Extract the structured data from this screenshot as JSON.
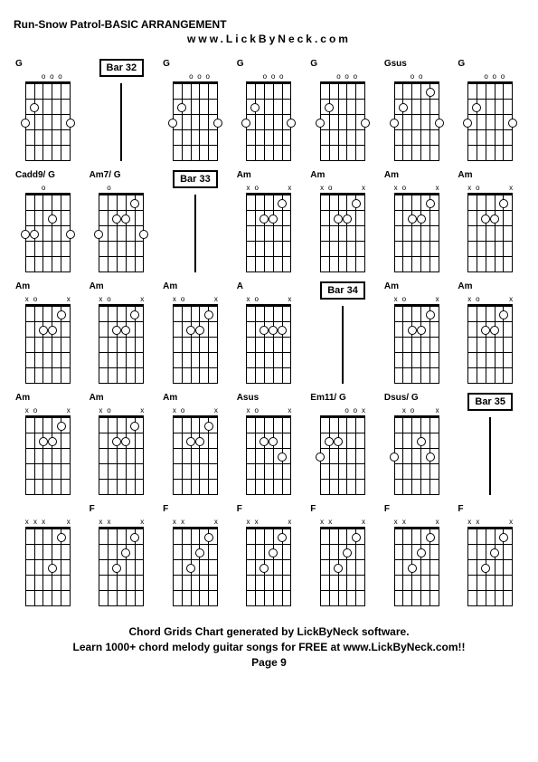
{
  "title": "Run-Snow Patrol-BASIC ARRANGEMENT",
  "subtitle": "www.LickByNeck.com",
  "footer_line1": "Chord Grids Chart generated by LickByNeck software.",
  "footer_line2": "Learn 1000+ chord melody guitar songs for FREE at www.LickByNeck.com!!",
  "footer_line3": "Page 9",
  "colors": {
    "background": "#ffffff",
    "text": "#000000",
    "lines": "#000000"
  },
  "grid_config": {
    "rows": 5,
    "cols": 7,
    "fret_count": 5,
    "string_count": 6
  },
  "cells": [
    {
      "type": "chord",
      "label": "G",
      "markers": [
        "",
        "",
        "o",
        "o",
        "o",
        ""
      ],
      "dots": [
        {
          "s": 0,
          "f": 3
        },
        {
          "s": 1,
          "f": 2
        },
        {
          "s": 5,
          "f": 3
        }
      ]
    },
    {
      "type": "bar",
      "label": "Bar 32"
    },
    {
      "type": "chord",
      "label": "G",
      "markers": [
        "",
        "",
        "o",
        "o",
        "o",
        ""
      ],
      "dots": [
        {
          "s": 0,
          "f": 3
        },
        {
          "s": 1,
          "f": 2
        },
        {
          "s": 5,
          "f": 3
        }
      ]
    },
    {
      "type": "chord",
      "label": "G",
      "markers": [
        "",
        "",
        "o",
        "o",
        "o",
        ""
      ],
      "dots": [
        {
          "s": 0,
          "f": 3
        },
        {
          "s": 1,
          "f": 2
        },
        {
          "s": 5,
          "f": 3
        }
      ]
    },
    {
      "type": "chord",
      "label": "G",
      "markers": [
        "",
        "",
        "o",
        "o",
        "o",
        ""
      ],
      "dots": [
        {
          "s": 0,
          "f": 3
        },
        {
          "s": 1,
          "f": 2
        },
        {
          "s": 5,
          "f": 3
        }
      ]
    },
    {
      "type": "chord",
      "label": "Gsus",
      "markers": [
        "",
        "",
        "o",
        "o",
        "",
        ""
      ],
      "dots": [
        {
          "s": 0,
          "f": 3
        },
        {
          "s": 1,
          "f": 2
        },
        {
          "s": 4,
          "f": 1
        },
        {
          "s": 5,
          "f": 3
        }
      ]
    },
    {
      "type": "chord",
      "label": "G",
      "markers": [
        "",
        "",
        "o",
        "o",
        "o",
        ""
      ],
      "dots": [
        {
          "s": 0,
          "f": 3
        },
        {
          "s": 1,
          "f": 2
        },
        {
          "s": 5,
          "f": 3
        }
      ]
    },
    {
      "type": "chord",
      "label": "Cadd9/ G",
      "markers": [
        "",
        "",
        "o",
        "",
        "",
        ""
      ],
      "dots": [
        {
          "s": 0,
          "f": 3
        },
        {
          "s": 1,
          "f": 3
        },
        {
          "s": 3,
          "f": 2
        },
        {
          "s": 5,
          "f": 3
        }
      ]
    },
    {
      "type": "chord",
      "label": "Am7/ G",
      "markers": [
        "",
        "o",
        "",
        "",
        "",
        ""
      ],
      "dots": [
        {
          "s": 0,
          "f": 3
        },
        {
          "s": 2,
          "f": 2
        },
        {
          "s": 3,
          "f": 2
        },
        {
          "s": 4,
          "f": 1
        },
        {
          "s": 5,
          "f": 3
        }
      ]
    },
    {
      "type": "bar",
      "label": "Bar 33"
    },
    {
      "type": "chord",
      "label": "Am",
      "markers": [
        "x",
        "o",
        "",
        "",
        "",
        "x"
      ],
      "dots": [
        {
          "s": 2,
          "f": 2
        },
        {
          "s": 3,
          "f": 2
        },
        {
          "s": 4,
          "f": 1
        }
      ]
    },
    {
      "type": "chord",
      "label": "Am",
      "markers": [
        "x",
        "o",
        "",
        "",
        "",
        "x"
      ],
      "dots": [
        {
          "s": 2,
          "f": 2
        },
        {
          "s": 3,
          "f": 2
        },
        {
          "s": 4,
          "f": 1
        }
      ]
    },
    {
      "type": "chord",
      "label": "Am",
      "markers": [
        "x",
        "o",
        "",
        "",
        "",
        "x"
      ],
      "dots": [
        {
          "s": 2,
          "f": 2
        },
        {
          "s": 3,
          "f": 2
        },
        {
          "s": 4,
          "f": 1
        }
      ]
    },
    {
      "type": "chord",
      "label": "Am",
      "markers": [
        "x",
        "o",
        "",
        "",
        "",
        "x"
      ],
      "dots": [
        {
          "s": 2,
          "f": 2
        },
        {
          "s": 3,
          "f": 2
        },
        {
          "s": 4,
          "f": 1
        }
      ]
    },
    {
      "type": "chord",
      "label": "Am",
      "markers": [
        "x",
        "o",
        "",
        "",
        "",
        "x"
      ],
      "dots": [
        {
          "s": 2,
          "f": 2
        },
        {
          "s": 3,
          "f": 2
        },
        {
          "s": 4,
          "f": 1
        }
      ]
    },
    {
      "type": "chord",
      "label": "Am",
      "markers": [
        "x",
        "o",
        "",
        "",
        "",
        "x"
      ],
      "dots": [
        {
          "s": 2,
          "f": 2
        },
        {
          "s": 3,
          "f": 2
        },
        {
          "s": 4,
          "f": 1
        }
      ]
    },
    {
      "type": "chord",
      "label": "Am",
      "markers": [
        "x",
        "o",
        "",
        "",
        "",
        "x"
      ],
      "dots": [
        {
          "s": 2,
          "f": 2
        },
        {
          "s": 3,
          "f": 2
        },
        {
          "s": 4,
          "f": 1
        }
      ]
    },
    {
      "type": "chord",
      "label": "A",
      "markers": [
        "x",
        "o",
        "",
        "",
        "",
        "x"
      ],
      "dots": [
        {
          "s": 2,
          "f": 2
        },
        {
          "s": 3,
          "f": 2
        },
        {
          "s": 4,
          "f": 2
        }
      ]
    },
    {
      "type": "bar",
      "label": "Bar 34"
    },
    {
      "type": "chord",
      "label": "Am",
      "markers": [
        "x",
        "o",
        "",
        "",
        "",
        "x"
      ],
      "dots": [
        {
          "s": 2,
          "f": 2
        },
        {
          "s": 3,
          "f": 2
        },
        {
          "s": 4,
          "f": 1
        }
      ]
    },
    {
      "type": "chord",
      "label": "Am",
      "markers": [
        "x",
        "o",
        "",
        "",
        "",
        "x"
      ],
      "dots": [
        {
          "s": 2,
          "f": 2
        },
        {
          "s": 3,
          "f": 2
        },
        {
          "s": 4,
          "f": 1
        }
      ]
    },
    {
      "type": "chord",
      "label": "Am",
      "markers": [
        "x",
        "o",
        "",
        "",
        "",
        "x"
      ],
      "dots": [
        {
          "s": 2,
          "f": 2
        },
        {
          "s": 3,
          "f": 2
        },
        {
          "s": 4,
          "f": 1
        }
      ]
    },
    {
      "type": "chord",
      "label": "Am",
      "markers": [
        "x",
        "o",
        "",
        "",
        "",
        "x"
      ],
      "dots": [
        {
          "s": 2,
          "f": 2
        },
        {
          "s": 3,
          "f": 2
        },
        {
          "s": 4,
          "f": 1
        }
      ]
    },
    {
      "type": "chord",
      "label": "Am",
      "markers": [
        "x",
        "o",
        "",
        "",
        "",
        "x"
      ],
      "dots": [
        {
          "s": 2,
          "f": 2
        },
        {
          "s": 3,
          "f": 2
        },
        {
          "s": 4,
          "f": 1
        }
      ]
    },
    {
      "type": "chord",
      "label": "Asus",
      "markers": [
        "x",
        "o",
        "",
        "",
        "",
        "x"
      ],
      "dots": [
        {
          "s": 2,
          "f": 2
        },
        {
          "s": 3,
          "f": 2
        },
        {
          "s": 4,
          "f": 3
        }
      ]
    },
    {
      "type": "chord",
      "label": "Em11/ G",
      "markers": [
        "",
        "",
        "",
        "o",
        "o",
        "x"
      ],
      "dots": [
        {
          "s": 0,
          "f": 3
        },
        {
          "s": 1,
          "f": 2
        },
        {
          "s": 2,
          "f": 2
        }
      ]
    },
    {
      "type": "chord",
      "label": "Dsus/ G",
      "markers": [
        "",
        "x",
        "o",
        "",
        "",
        "x"
      ],
      "dots": [
        {
          "s": 0,
          "f": 3
        },
        {
          "s": 3,
          "f": 2
        },
        {
          "s": 4,
          "f": 3
        }
      ]
    },
    {
      "type": "bar",
      "label": "Bar 35"
    },
    {
      "type": "chord",
      "label": "",
      "markers": [
        "x",
        "x",
        "x",
        "",
        "",
        "x"
      ],
      "dots": [
        {
          "s": 3,
          "f": 3
        },
        {
          "s": 4,
          "f": 1
        }
      ]
    },
    {
      "type": "chord",
      "label": "F",
      "markers": [
        "x",
        "x",
        "",
        "",
        "",
        "x"
      ],
      "dots": [
        {
          "s": 2,
          "f": 3
        },
        {
          "s": 3,
          "f": 2
        },
        {
          "s": 4,
          "f": 1
        }
      ]
    },
    {
      "type": "chord",
      "label": "F",
      "markers": [
        "x",
        "x",
        "",
        "",
        "",
        "x"
      ],
      "dots": [
        {
          "s": 2,
          "f": 3
        },
        {
          "s": 3,
          "f": 2
        },
        {
          "s": 4,
          "f": 1
        }
      ]
    },
    {
      "type": "chord",
      "label": "F",
      "markers": [
        "x",
        "x",
        "",
        "",
        "",
        "x"
      ],
      "dots": [
        {
          "s": 2,
          "f": 3
        },
        {
          "s": 3,
          "f": 2
        },
        {
          "s": 4,
          "f": 1
        }
      ]
    },
    {
      "type": "chord",
      "label": "F",
      "markers": [
        "x",
        "x",
        "",
        "",
        "",
        "x"
      ],
      "dots": [
        {
          "s": 2,
          "f": 3
        },
        {
          "s": 3,
          "f": 2
        },
        {
          "s": 4,
          "f": 1
        }
      ]
    },
    {
      "type": "chord",
      "label": "F",
      "markers": [
        "x",
        "x",
        "",
        "",
        "",
        "x"
      ],
      "dots": [
        {
          "s": 2,
          "f": 3
        },
        {
          "s": 3,
          "f": 2
        },
        {
          "s": 4,
          "f": 1
        }
      ]
    },
    {
      "type": "chord",
      "label": "F",
      "markers": [
        "x",
        "x",
        "",
        "",
        "",
        "x"
      ],
      "dots": [
        {
          "s": 2,
          "f": 3
        },
        {
          "s": 3,
          "f": 2
        },
        {
          "s": 4,
          "f": 1
        }
      ]
    }
  ]
}
